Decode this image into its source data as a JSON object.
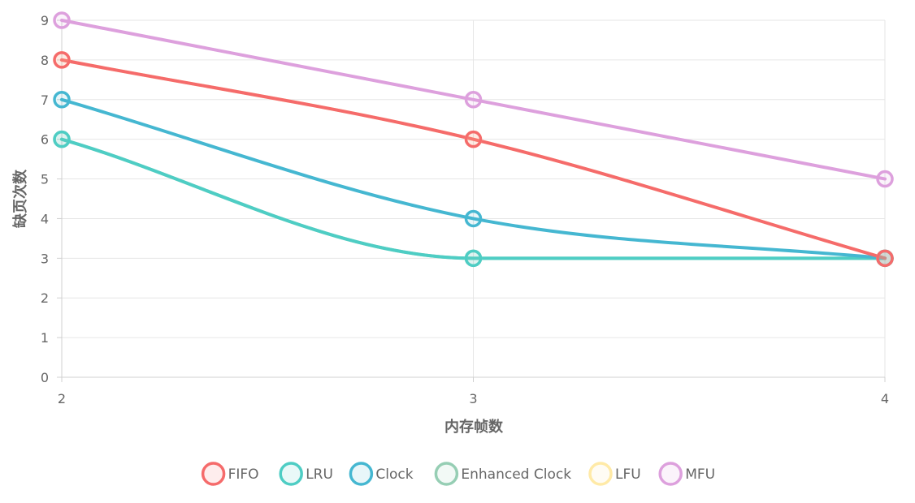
{
  "chart_data": {
    "type": "line",
    "title": "",
    "xlabel": "内存帧数",
    "ylabel": "缺页次数",
    "x": [
      2,
      3,
      4
    ],
    "x_tick_labels": [
      "2",
      "3",
      "4"
    ],
    "ylim": [
      0,
      9
    ],
    "y_ticks": [
      0,
      1,
      2,
      3,
      4,
      5,
      6,
      7,
      8,
      9
    ],
    "grid": true,
    "legend_position": "bottom",
    "series": [
      {
        "name": "FIFO",
        "color": "#f56b6b",
        "values": [
          8,
          6,
          3
        ]
      },
      {
        "name": "LRU",
        "color": "#4ecdc4",
        "values": [
          6,
          3,
          3
        ]
      },
      {
        "name": "Clock",
        "color": "#45b7d1",
        "values": [
          7,
          4,
          3
        ]
      },
      {
        "name": "Enhanced Clock",
        "color": "#96ceb4",
        "values": [
          6,
          3,
          3
        ]
      },
      {
        "name": "LFU",
        "color": "#ffeaa7",
        "values": [
          8,
          6,
          3
        ]
      },
      {
        "name": "MFU",
        "color": "#dda0dd",
        "values": [
          9,
          7,
          5
        ]
      }
    ],
    "draw_order": [
      "Enhanced Clock",
      "LRU",
      "LFU",
      "Clock",
      "FIFO",
      "MFU"
    ]
  }
}
